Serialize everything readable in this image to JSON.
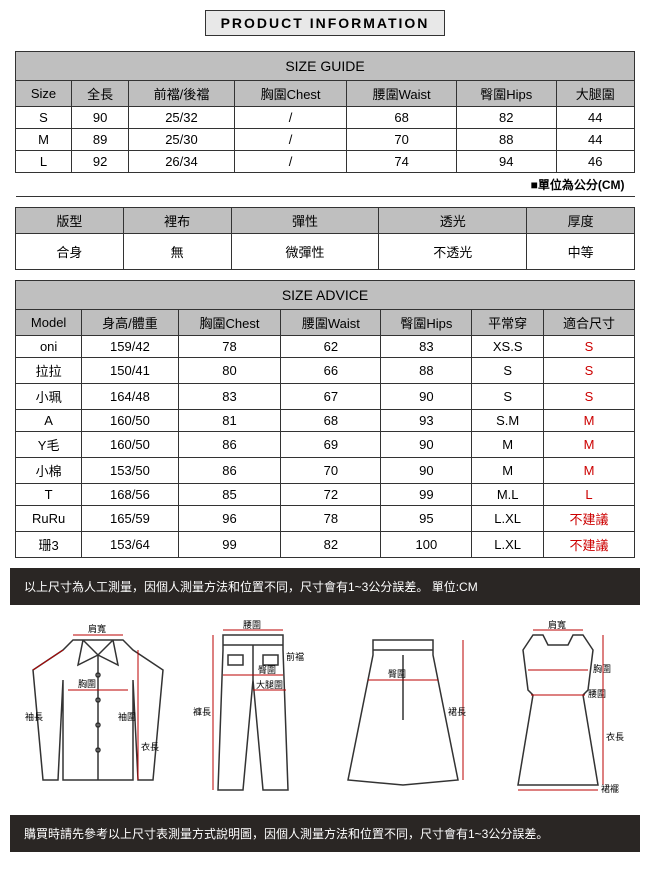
{
  "header": {
    "title": "PRODUCT INFORMATION"
  },
  "sizeGuide": {
    "title": "SIZE GUIDE",
    "columns": [
      "Size",
      "全長",
      "前襠/後襠",
      "胸圍Chest",
      "腰圍Waist",
      "臀圍Hips",
      "大腿圍"
    ],
    "rows": [
      [
        "S",
        "90",
        "25/32",
        "/",
        "68",
        "82",
        "44"
      ],
      [
        "M",
        "89",
        "25/30",
        "/",
        "70",
        "88",
        "44"
      ],
      [
        "L",
        "92",
        "26/34",
        "/",
        "74",
        "94",
        "46"
      ]
    ],
    "note": "■單位為公分(CM)"
  },
  "attributes": {
    "columns": [
      "版型",
      "裡布",
      "彈性",
      "透光",
      "厚度"
    ],
    "values": [
      "合身",
      "無",
      "微彈性",
      "不透光",
      "中等"
    ]
  },
  "sizeAdvice": {
    "title": "SIZE ADVICE",
    "columns": [
      "Model",
      "身高/體重",
      "胸圍Chest",
      "腰圍Waist",
      "臀圍Hips",
      "平常穿",
      "適合尺寸"
    ],
    "rows": [
      {
        "cells": [
          "oni",
          "159/42",
          "78",
          "62",
          "83",
          "XS.S"
        ],
        "fit": "S",
        "fitClass": "red"
      },
      {
        "cells": [
          "拉拉",
          "150/41",
          "80",
          "66",
          "88",
          "S"
        ],
        "fit": "S",
        "fitClass": "red"
      },
      {
        "cells": [
          "小珮",
          "164/48",
          "83",
          "67",
          "90",
          "S"
        ],
        "fit": "S",
        "fitClass": "red"
      },
      {
        "cells": [
          "A",
          "160/50",
          "81",
          "68",
          "93",
          "S.M"
        ],
        "fit": "M",
        "fitClass": "red"
      },
      {
        "cells": [
          "Y毛",
          "160/50",
          "86",
          "69",
          "90",
          "M"
        ],
        "fit": "M",
        "fitClass": "red"
      },
      {
        "cells": [
          "小棉",
          "153/50",
          "86",
          "70",
          "90",
          "M"
        ],
        "fit": "M",
        "fitClass": "red"
      },
      {
        "cells": [
          "T",
          "168/56",
          "85",
          "72",
          "99",
          "M.L"
        ],
        "fit": "L",
        "fitClass": "red"
      },
      {
        "cells": [
          "RuRu",
          "165/59",
          "96",
          "78",
          "95",
          "L.XL"
        ],
        "fit": "不建議",
        "fitClass": "red"
      },
      {
        "cells": [
          "珊3",
          "153/64",
          "99",
          "82",
          "100",
          "L.XL"
        ],
        "fit": "不建議",
        "fitClass": "red"
      }
    ]
  },
  "notices": {
    "top": "以上尺寸為人工測量，因個人測量方法和位置不同，尺寸會有1~3公分誤差。 單位:CM",
    "bottom": "購買時請先參考以上尺寸表測量方式說明圖，因個人測量方法和位置不同，尺寸會有1~3公分誤差。"
  },
  "diagram": {
    "labels": {
      "shoulder": "肩寬",
      "chest": "胸圍",
      "sleeve": "袖長",
      "sleeveOpen": "袖圍",
      "length": "衣長",
      "waist": "腰圍",
      "frontRise": "前襠",
      "hip": "臀圍",
      "thigh": "大腿圍",
      "pantLen": "褲長",
      "skirtLen": "裙長",
      "skirtHem": "裙襬"
    }
  },
  "colors": {
    "red": "#c00",
    "headerBg": "#bfbfbf",
    "darkBar": "#2a2624"
  }
}
